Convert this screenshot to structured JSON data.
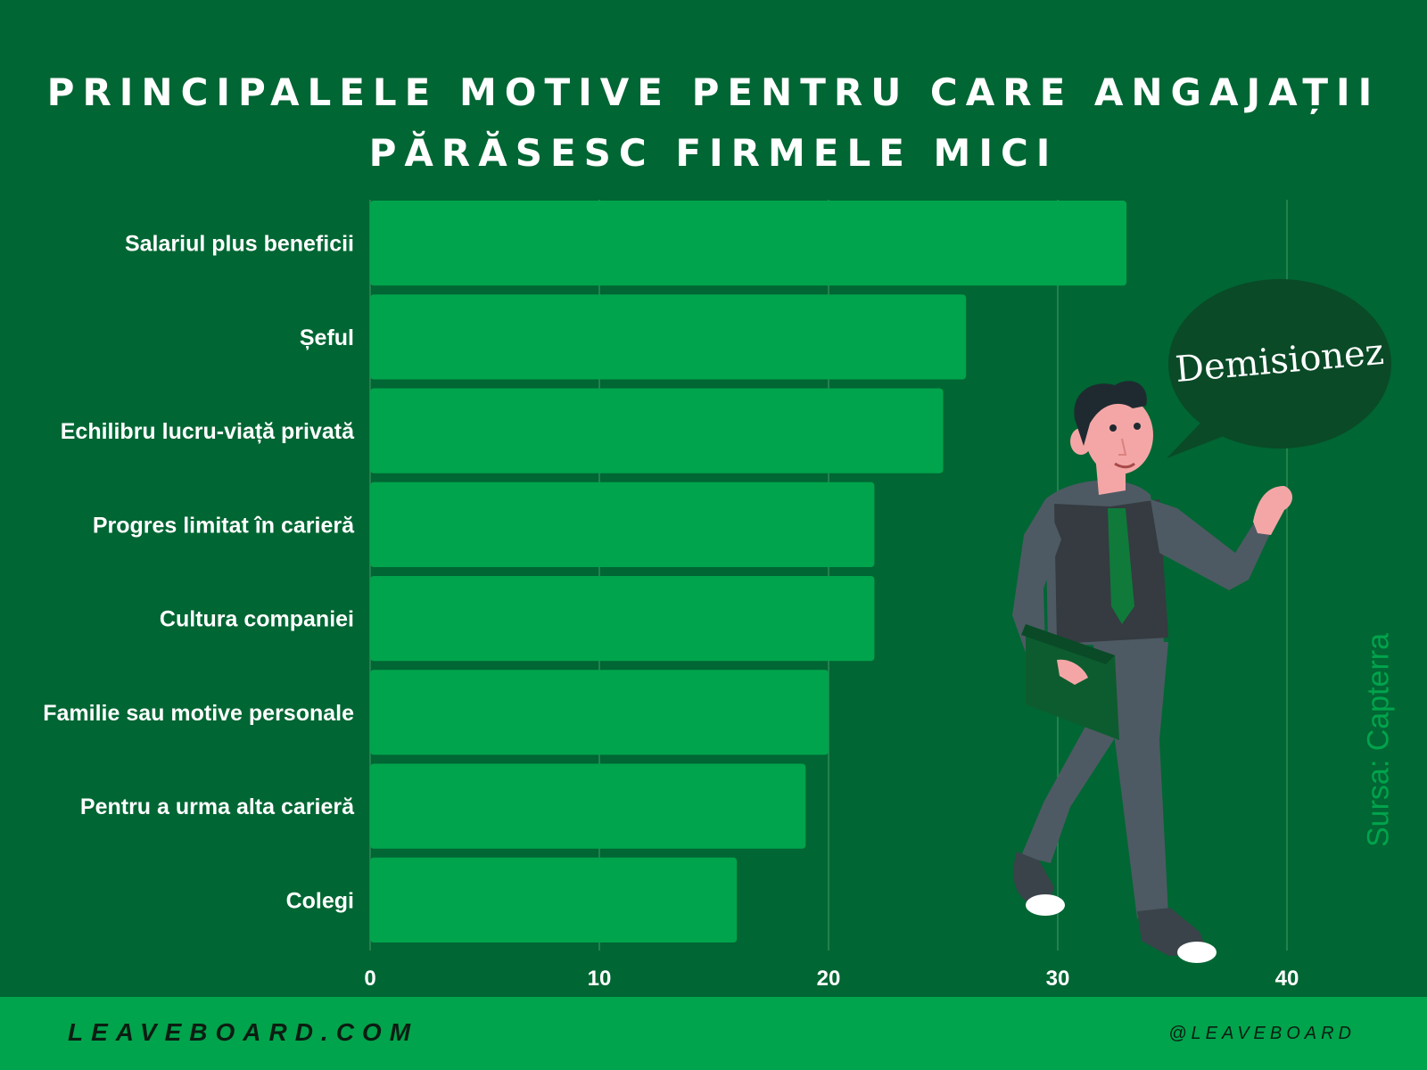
{
  "title": {
    "line1": "PRINCIPALELE MOTIVE PENTRU CARE ANGAJAȚII",
    "line2": "PĂRĂSESC FIRMELE MICI"
  },
  "speech_bubble": "Demisionez",
  "source": "Sursa: Capterra",
  "footer": {
    "site": "LEAVEBOARD.COM",
    "handle": "@LEAVEBOARD"
  },
  "colors": {
    "background": "#006633",
    "bar": "#00a44c",
    "footer": "#00a44c",
    "text": "#ffffff"
  },
  "chart_data": {
    "type": "bar",
    "orientation": "horizontal",
    "categories": [
      "Salariul plus beneficii",
      "Șeful",
      "Echilibru lucru-viață privată",
      "Progres limitat în carieră",
      "Cultura companiei",
      "Familie sau motive personale",
      "Pentru a urma alta carieră",
      "Colegi"
    ],
    "values": [
      33,
      26,
      25,
      22,
      22,
      20,
      19,
      16
    ],
    "xlim": [
      0,
      40
    ],
    "xticks": [
      0,
      10,
      20,
      30,
      40
    ],
    "grid": "vertical",
    "legend": "none"
  }
}
